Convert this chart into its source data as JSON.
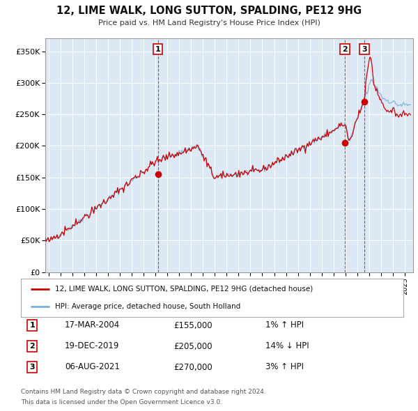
{
  "title": "12, LIME WALK, LONG SUTTON, SPALDING, PE12 9HG",
  "subtitle": "Price paid vs. HM Land Registry's House Price Index (HPI)",
  "bg_color": "#dce9f5",
  "plot_bg_color": "#dce9f5",
  "red_line_color": "#cc0000",
  "blue_line_color": "#7aaed6",
  "marker_color": "#cc0000",
  "grid_color": "#ffffff",
  "sale_dates": [
    2004.21,
    2019.96,
    2021.6
  ],
  "sale_prices": [
    155000,
    205000,
    270000
  ],
  "sale_labels": [
    "1",
    "2",
    "3"
  ],
  "vline_color": "#cc0000",
  "legend_entries": [
    "12, LIME WALK, LONG SUTTON, SPALDING, PE12 9HG (detached house)",
    "HPI: Average price, detached house, South Holland"
  ],
  "table_rows": [
    [
      "1",
      "17-MAR-2004",
      "£155,000",
      "1% ↑ HPI"
    ],
    [
      "2",
      "19-DEC-2019",
      "£205,000",
      "14% ↓ HPI"
    ],
    [
      "3",
      "06-AUG-2021",
      "£270,000",
      "3% ↑ HPI"
    ]
  ],
  "footnote1": "Contains HM Land Registry data © Crown copyright and database right 2024.",
  "footnote2": "This data is licensed under the Open Government Licence v3.0.",
  "ylim": [
    0,
    370000
  ],
  "yticks": [
    0,
    50000,
    100000,
    150000,
    200000,
    250000,
    300000,
    350000
  ],
  "ytick_labels": [
    "£0",
    "£50K",
    "£100K",
    "£150K",
    "£200K",
    "£250K",
    "£300K",
    "£350K"
  ],
  "xlim_start": 1994.7,
  "xlim_end": 2025.7
}
